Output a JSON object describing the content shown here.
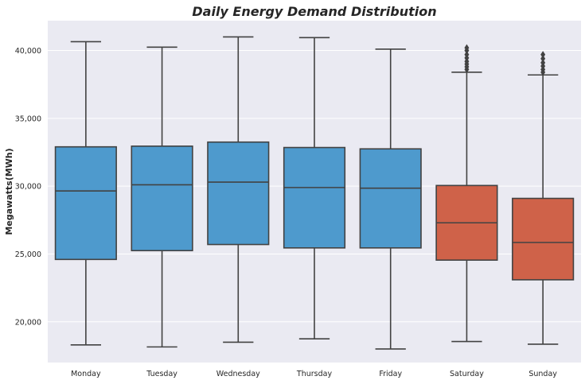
{
  "chart_data": {
    "type": "box",
    "title": "Daily Energy Demand Distribution",
    "ylabel": "Megawatts(MWh)",
    "xlabel": "",
    "ylim": [
      17000,
      42200
    ],
    "yticks": [
      20000,
      25000,
      30000,
      35000,
      40000
    ],
    "ytick_labels": [
      "20,000",
      "25,000",
      "30,000",
      "35,000",
      "40,000"
    ],
    "grid": true,
    "colors": {
      "weekday": "#4e9acd",
      "weekend": "#cf6249",
      "line": "#424242",
      "background": "#eaeaf2"
    },
    "boxes": [
      {
        "category": "Monday",
        "min": 18300,
        "q1": 24600,
        "median": 29650,
        "q3": 32900,
        "max": 40650,
        "outliers": [],
        "group": "weekday"
      },
      {
        "category": "Tuesday",
        "min": 18150,
        "q1": 25250,
        "median": 30100,
        "q3": 32950,
        "max": 40250,
        "outliers": [],
        "group": "weekday"
      },
      {
        "category": "Wednesday",
        "min": 18500,
        "q1": 25700,
        "median": 30300,
        "q3": 33250,
        "max": 41000,
        "outliers": [],
        "group": "weekday"
      },
      {
        "category": "Thursday",
        "min": 18750,
        "q1": 25450,
        "median": 29900,
        "q3": 32850,
        "max": 40950,
        "outliers": [],
        "group": "weekday"
      },
      {
        "category": "Friday",
        "min": 18000,
        "q1": 25450,
        "median": 29850,
        "q3": 32750,
        "max": 40100,
        "outliers": [],
        "group": "weekday"
      },
      {
        "category": "Saturday",
        "min": 18550,
        "q1": 24550,
        "median": 27300,
        "q3": 30050,
        "max": 38400,
        "outliers": [
          38600,
          38800,
          39000,
          39200,
          39450,
          39700,
          40000,
          40200
        ],
        "group": "weekend"
      },
      {
        "category": "Sunday",
        "min": 18350,
        "q1": 23100,
        "median": 25850,
        "q3": 29100,
        "max": 38200,
        "outliers": [
          38400,
          38600,
          38850,
          39100,
          39400,
          39700
        ],
        "group": "weekend"
      }
    ]
  }
}
